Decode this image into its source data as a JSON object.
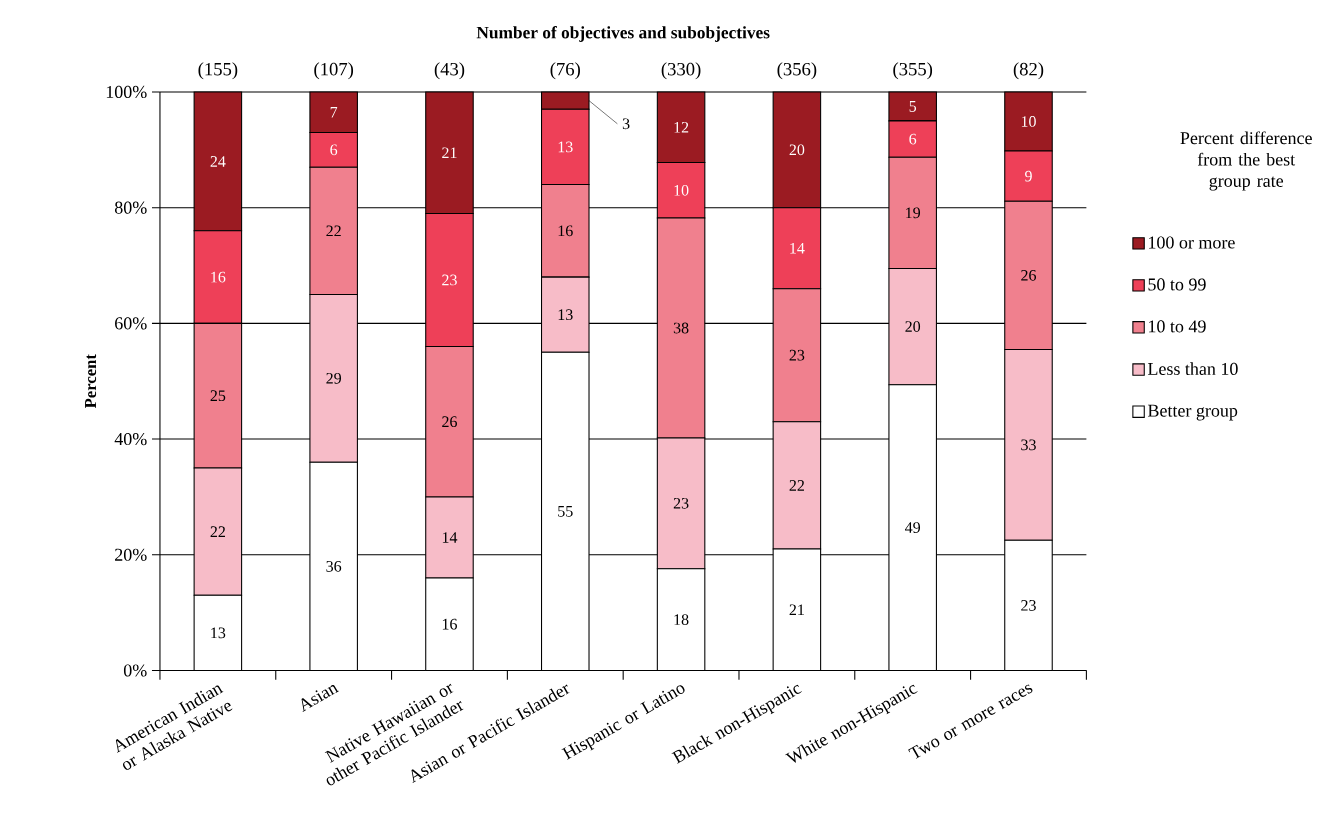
{
  "chart_data": {
    "type": "bar",
    "stacked": true,
    "title": "Number of objectives and subobjectives",
    "ylabel": "Percent",
    "legend_title": "Percent difference from the best group rate",
    "categories": [
      "American Indian or Alaska Native",
      "Asian",
      "Native Hawaiian or other Pacific Islander",
      "Asian or Pacific Islander",
      "Hispanic or Latino",
      "Black non-Hispanic",
      "White non-Hispanic",
      "Two or more races"
    ],
    "series": [
      {
        "name": "Better group",
        "color": "#ffffff",
        "values": [
          13,
          36,
          16,
          55,
          17.6,
          21,
          49.4,
          22.5
        ],
        "value_labels": [
          "13",
          "36",
          "16",
          "55",
          "18",
          "21",
          "49",
          "23"
        ]
      },
      {
        "name": "Less than 10",
        "color": "#f7bcc8",
        "values": [
          22,
          29,
          14,
          13,
          22.6,
          22,
          20.1,
          33
        ],
        "value_labels": [
          "22",
          "29",
          "14",
          "13",
          "23",
          "22",
          "20",
          "33"
        ]
      },
      {
        "name": "10 to 49",
        "color": "#f0808e",
        "values": [
          25,
          22,
          26,
          16,
          38.0,
          23,
          19.2,
          25.6
        ],
        "value_labels": [
          "25",
          "22",
          "26",
          "16",
          "38",
          "23",
          "19",
          "26"
        ]
      },
      {
        "name": "50 to 99",
        "color": "#ee4058",
        "values": [
          16,
          6,
          23,
          13,
          9.6,
          14,
          6.3,
          8.7
        ],
        "value_labels": [
          "16",
          "6",
          "23",
          "13",
          "10",
          "14",
          "6",
          "9"
        ]
      },
      {
        "name": "100 or more",
        "color": "#9b1b22",
        "values": [
          24,
          7,
          21,
          3,
          12.2,
          20,
          5.0,
          10.2
        ],
        "value_labels": [
          "24",
          "7",
          "21",
          "3",
          "12",
          "20",
          "5",
          "10"
        ]
      }
    ],
    "ylim": [
      0,
      100
    ],
    "yticks": [
      {
        "value": 0,
        "label": "0%"
      },
      {
        "value": 20,
        "label": "20%"
      },
      {
        "value": 40,
        "label": "40%"
      },
      {
        "value": 60,
        "label": "60%"
      },
      {
        "value": 80,
        "label": "80%"
      },
      {
        "value": 100,
        "label": "100%"
      }
    ],
    "grid": "y",
    "legend": "right",
    "annotations": [
      "(155)",
      "(107)",
      "(43)",
      "(76)",
      "(330)",
      "(356)",
      "(355)",
      "(82)"
    ]
  }
}
